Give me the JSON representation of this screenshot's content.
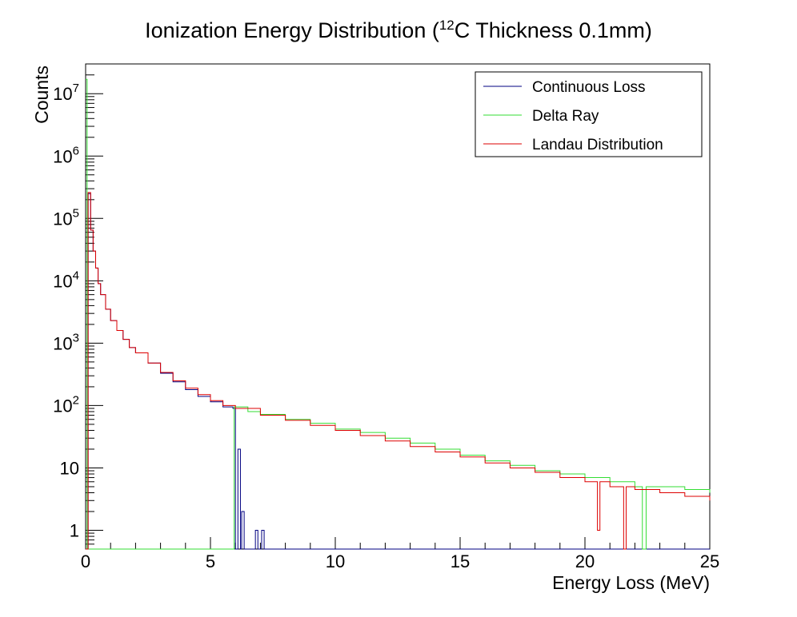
{
  "chart_data": {
    "type": "histogram",
    "title_main": "Ionization Energy Distribution (",
    "title_sup": "12",
    "title_rest": "C Thickness 0.1mm)",
    "xlabel": "Energy Loss (MeV)",
    "ylabel": "Counts",
    "xlim": [
      0,
      25
    ],
    "ylim": [
      0.5,
      30000000
    ],
    "yscale": "log",
    "x_ticks": [
      {
        "v": 0,
        "label": "0"
      },
      {
        "v": 5,
        "label": "5"
      },
      {
        "v": 10,
        "label": "10"
      },
      {
        "v": 15,
        "label": "15"
      },
      {
        "v": 20,
        "label": "20"
      },
      {
        "v": 25,
        "label": "25"
      }
    ],
    "y_ticks": [
      {
        "v": 1,
        "base": "1",
        "exp": ""
      },
      {
        "v": 10,
        "base": "10",
        "exp": ""
      },
      {
        "v": 100,
        "base": "10",
        "exp": "2"
      },
      {
        "v": 1000,
        "base": "10",
        "exp": "3"
      },
      {
        "v": 10000,
        "base": "10",
        "exp": "4"
      },
      {
        "v": 100000,
        "base": "10",
        "exp": "5"
      },
      {
        "v": 1000000,
        "base": "10",
        "exp": "6"
      },
      {
        "v": 10000000,
        "base": "10",
        "exp": "7"
      }
    ],
    "legend_position": "top-right",
    "series": [
      {
        "name": "Continuous Loss",
        "color": "#000080",
        "style": "step",
        "points": [
          [
            0.0,
            0.5
          ],
          [
            0.1,
            250000
          ],
          [
            0.2,
            65000
          ],
          [
            0.3,
            30000
          ],
          [
            0.4,
            16000
          ],
          [
            0.5,
            9000
          ],
          [
            0.6,
            6000
          ],
          [
            0.8,
            3500
          ],
          [
            1.0,
            2300
          ],
          [
            1.25,
            1600
          ],
          [
            1.5,
            1150
          ],
          [
            1.75,
            850
          ],
          [
            2.0,
            700
          ],
          [
            2.5,
            480
          ],
          [
            3.0,
            330
          ],
          [
            3.5,
            240
          ],
          [
            4.0,
            180
          ],
          [
            4.5,
            140
          ],
          [
            5.0,
            115
          ],
          [
            5.5,
            95
          ],
          [
            5.9,
            90
          ],
          [
            6.0,
            0.5
          ],
          [
            6.1,
            20
          ],
          [
            6.2,
            0.5
          ],
          [
            6.25,
            2
          ],
          [
            6.35,
            0.5
          ],
          [
            6.8,
            1
          ],
          [
            6.9,
            0.5
          ],
          [
            7.05,
            1
          ],
          [
            7.15,
            0.5
          ],
          [
            25,
            0.5
          ]
        ]
      },
      {
        "name": "Delta Ray",
        "color": "#33dd33",
        "style": "step",
        "points": [
          [
            0.0,
            17000000
          ],
          [
            0.06,
            0.5
          ],
          [
            5.95,
            0.5
          ],
          [
            5.95,
            95
          ],
          [
            6.5,
            80
          ],
          [
            7.0,
            72
          ],
          [
            8.0,
            60
          ],
          [
            9.0,
            52
          ],
          [
            10.0,
            42
          ],
          [
            11.0,
            37
          ],
          [
            12.0,
            30
          ],
          [
            13.0,
            25
          ],
          [
            14.0,
            20
          ],
          [
            15.0,
            16
          ],
          [
            16.0,
            13
          ],
          [
            17.0,
            11
          ],
          [
            18.0,
            9
          ],
          [
            19.0,
            8
          ],
          [
            20.0,
            7
          ],
          [
            21.0,
            6
          ],
          [
            22.0,
            5
          ],
          [
            22.3,
            0.5
          ],
          [
            22.45,
            5
          ],
          [
            23.0,
            5
          ],
          [
            24.0,
            4.5
          ],
          [
            25.0,
            4
          ]
        ]
      },
      {
        "name": "Landau Distribution",
        "color": "#dd0000",
        "style": "step",
        "points": [
          [
            0.0,
            0.5
          ],
          [
            0.1,
            260000
          ],
          [
            0.2,
            65000
          ],
          [
            0.3,
            30000
          ],
          [
            0.4,
            16000
          ],
          [
            0.5,
            9000
          ],
          [
            0.6,
            6000
          ],
          [
            0.8,
            3500
          ],
          [
            1.0,
            2300
          ],
          [
            1.25,
            1600
          ],
          [
            1.5,
            1150
          ],
          [
            1.75,
            850
          ],
          [
            2.0,
            700
          ],
          [
            2.5,
            480
          ],
          [
            3.0,
            340
          ],
          [
            3.5,
            250
          ],
          [
            4.0,
            190
          ],
          [
            4.5,
            150
          ],
          [
            5.0,
            120
          ],
          [
            5.5,
            100
          ],
          [
            6.0,
            90
          ],
          [
            7.0,
            70
          ],
          [
            8.0,
            58
          ],
          [
            9.0,
            48
          ],
          [
            10.0,
            40
          ],
          [
            11.0,
            33
          ],
          [
            12.0,
            27
          ],
          [
            13.0,
            22
          ],
          [
            14.0,
            18
          ],
          [
            15.0,
            15
          ],
          [
            16.0,
            12
          ],
          [
            17.0,
            10
          ],
          [
            18.0,
            8.5
          ],
          [
            19.0,
            7
          ],
          [
            20.0,
            6
          ],
          [
            20.5,
            1
          ],
          [
            20.6,
            6
          ],
          [
            21.0,
            5
          ],
          [
            21.55,
            0.5
          ],
          [
            21.65,
            5
          ],
          [
            22.0,
            4.5
          ],
          [
            23.0,
            4
          ],
          [
            24.0,
            3.5
          ],
          [
            25.0,
            3
          ]
        ]
      }
    ]
  }
}
